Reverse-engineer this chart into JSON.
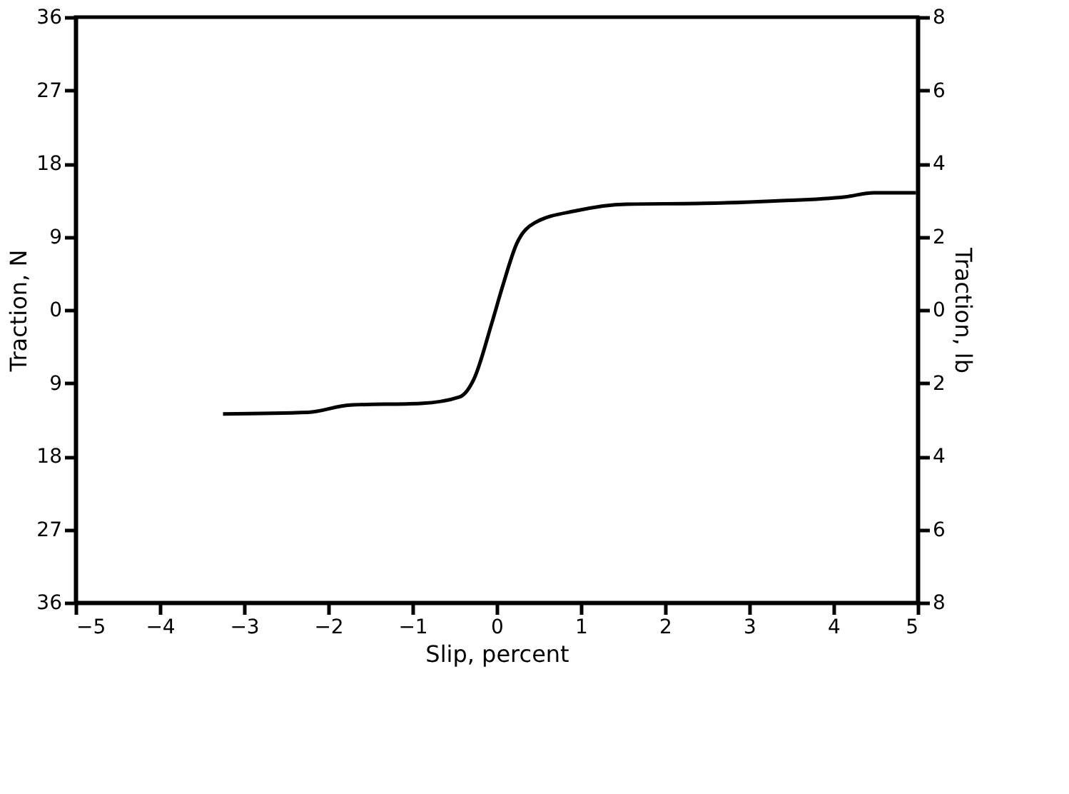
{
  "chart_data": {
    "type": "line",
    "xlabel": "Slip, percent",
    "ylabel": "Traction, N",
    "y2label": "Traction, lb",
    "x": [
      -3.25,
      -2.24,
      -1.74,
      -0.9,
      -0.44,
      -0.27,
      -0.06,
      0.07,
      0.24,
      0.45,
      0.95,
      1.54,
      2.46,
      3.3,
      4.14,
      4.48,
      4.98
    ],
    "series": [
      {
        "color": "#000000",
        "values": [
          -12.8,
          -12.6,
          -11.7,
          -11.5,
          -10.7,
          -8.5,
          -1.7,
          2.9,
          8.2,
          10.7,
          12.2,
          13.0,
          13.1,
          13.4,
          13.9,
          14.4,
          14.4
        ]
      }
    ],
    "xlim": [
      -5,
      5
    ],
    "xticks": [
      {
        "value": -5,
        "label": "−5"
      },
      {
        "value": -4,
        "label": "−4"
      },
      {
        "value": -3,
        "label": "−3"
      },
      {
        "value": -2,
        "label": "−2"
      },
      {
        "value": -1,
        "label": "−1"
      },
      0,
      1,
      2,
      3,
      4,
      5
    ],
    "ylim": [
      -36,
      36
    ],
    "yticks": [
      {
        "value": -36,
        "label": "36"
      },
      {
        "value": -27,
        "label": "27"
      },
      {
        "value": -18,
        "label": "18"
      },
      {
        "value": -9,
        "label": "9"
      },
      0,
      9,
      18,
      27,
      36
    ],
    "y2lim": [
      -8,
      8
    ],
    "y2ticks": [
      {
        "value": -8,
        "label": "8"
      },
      {
        "value": -6,
        "label": "6"
      },
      {
        "value": -4,
        "label": "4"
      },
      {
        "value": -2,
        "label": "2"
      },
      0,
      2,
      4,
      6,
      8
    ],
    "grid": false,
    "marker": "none",
    "line_style": "solid"
  }
}
